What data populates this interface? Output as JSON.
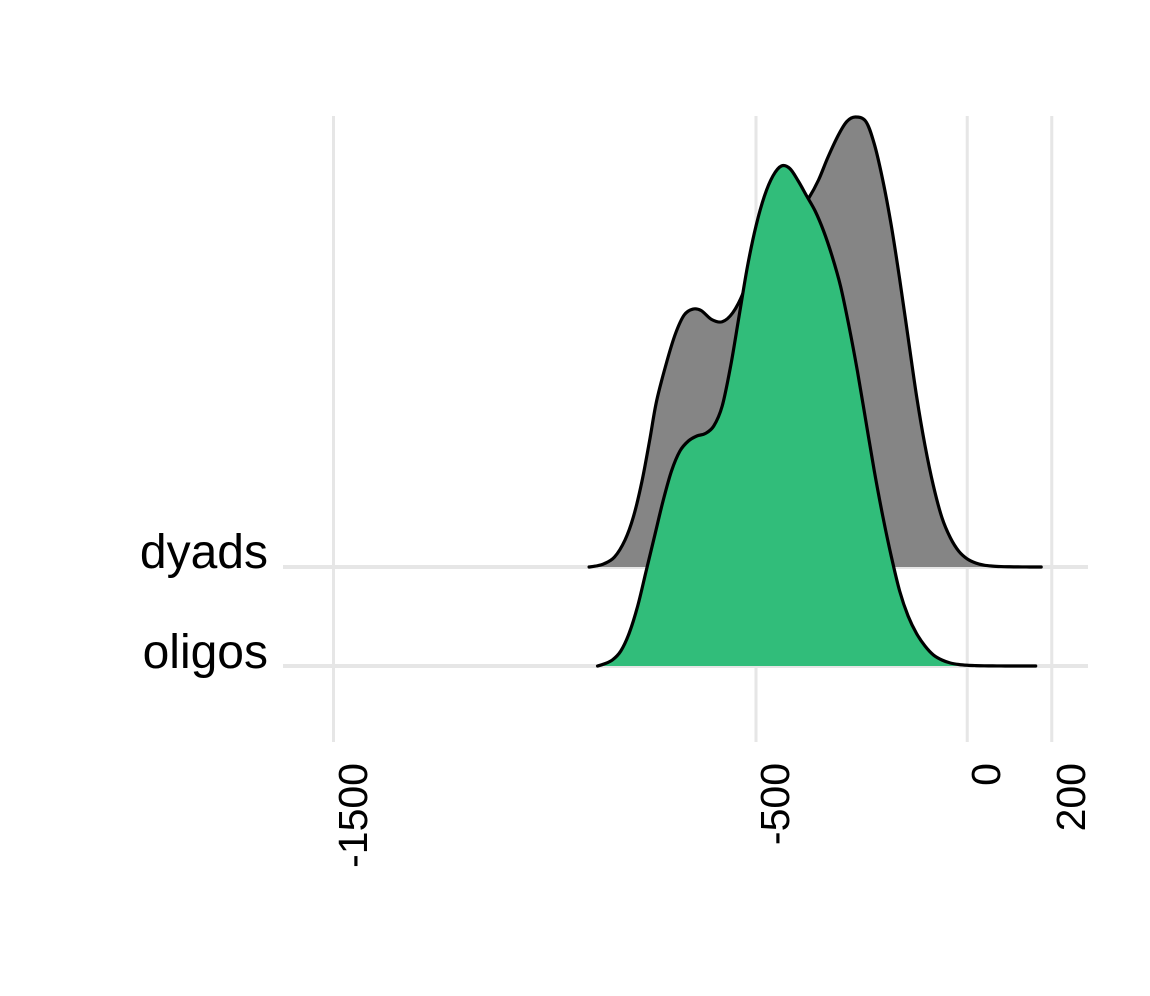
{
  "chart_data": {
    "type": "area",
    "subtype": "ridgeline-density",
    "title": "",
    "xlabel": "",
    "ylabel": "",
    "xlim": [
      -1620,
      280
    ],
    "x_ticks": [
      -1500,
      -500,
      0,
      200
    ],
    "x_tick_labels": [
      "-1500",
      "-500",
      "0",
      "200"
    ],
    "grid": true,
    "legend": "none",
    "categories": [
      "dyads",
      "oligos"
    ],
    "series": [
      {
        "name": "dyads",
        "color": "#858585",
        "x": [
          -895,
          -880,
          -860,
          -835,
          -810,
          -790,
          -770,
          -752,
          -735,
          -710,
          -690,
          -670,
          -650,
          -630,
          -605,
          -580,
          -555,
          -530,
          -510,
          -490,
          -470,
          -450,
          -430,
          -412,
          -395,
          -375,
          -352,
          -330,
          -305,
          -285,
          -265,
          -240,
          -220,
          -200,
          -180,
          -160,
          -140,
          -120,
          -100,
          -80,
          -60,
          -40,
          -20,
          0,
          20,
          40,
          60,
          80,
          100,
          120,
          140,
          160,
          175
        ],
        "density": [
          0.0,
          0.002,
          0.007,
          0.022,
          0.06,
          0.112,
          0.19,
          0.28,
          0.37,
          0.46,
          0.52,
          0.56,
          0.573,
          0.57,
          0.55,
          0.545,
          0.565,
          0.61,
          0.67,
          0.73,
          0.77,
          0.79,
          0.788,
          0.787,
          0.795,
          0.82,
          0.86,
          0.91,
          0.96,
          0.99,
          1.0,
          0.99,
          0.94,
          0.86,
          0.76,
          0.64,
          0.51,
          0.38,
          0.27,
          0.18,
          0.11,
          0.065,
          0.035,
          0.018,
          0.009,
          0.004,
          0.002,
          0.001,
          0.0005,
          0.0002,
          0.0001,
          0.0,
          0.0
        ]
      },
      {
        "name": "oligos",
        "color": "#31bd7a",
        "x": [
          -875,
          -860,
          -840,
          -820,
          -800,
          -780,
          -760,
          -740,
          -720,
          -700,
          -680,
          -660,
          -640,
          -620,
          -600,
          -580,
          -560,
          -540,
          -520,
          -500,
          -480,
          -460,
          -440,
          -420,
          -400,
          -380,
          -360,
          -340,
          -320,
          -300,
          -280,
          -260,
          -240,
          -220,
          -200,
          -180,
          -160,
          -140,
          -120,
          -100,
          -80,
          -60,
          -40,
          -20,
          0,
          20,
          40,
          60,
          80,
          100,
          120,
          140,
          162
        ],
        "density": [
          0.0,
          0.004,
          0.012,
          0.03,
          0.066,
          0.12,
          0.19,
          0.26,
          0.33,
          0.39,
          0.43,
          0.45,
          0.46,
          0.465,
          0.48,
          0.52,
          0.6,
          0.7,
          0.8,
          0.88,
          0.94,
          0.98,
          1.0,
          0.995,
          0.97,
          0.94,
          0.91,
          0.87,
          0.82,
          0.76,
          0.68,
          0.59,
          0.49,
          0.39,
          0.3,
          0.22,
          0.15,
          0.1,
          0.065,
          0.04,
          0.022,
          0.012,
          0.006,
          0.003,
          0.0015,
          0.0008,
          0.0004,
          0.0002,
          0.0001,
          5e-05,
          0.0,
          0.0,
          0.0
        ]
      }
    ]
  }
}
